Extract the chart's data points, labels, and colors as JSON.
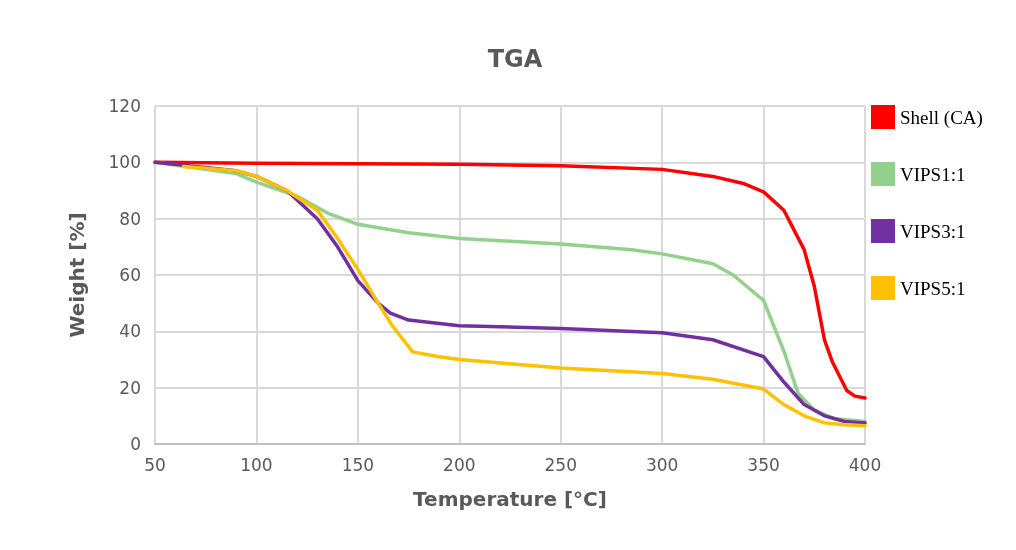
{
  "chart_data": {
    "type": "line",
    "title": "TGA",
    "xlabel": "Temperature [°C]",
    "ylabel": "Weight [%]",
    "xlim": [
      50,
      400
    ],
    "xticks": [
      50,
      100,
      150,
      200,
      250,
      300,
      350,
      400
    ],
    "ylim": [
      0,
      120
    ],
    "yticks": [
      0,
      20,
      40,
      60,
      80,
      100,
      120
    ],
    "grid": true,
    "legend": "right",
    "marker": "none",
    "line_style": "solid",
    "series": [
      {
        "name": "Shell (CA)",
        "color": "#ff0000",
        "x": [
          50,
          100,
          150,
          200,
          250,
          300,
          325,
          340,
          350,
          360,
          370,
          375,
          380,
          384,
          391,
          395,
          400
        ],
        "values": [
          100,
          99.7,
          99.5,
          99.3,
          98.8,
          97.5,
          95,
          92.5,
          89.5,
          83,
          69,
          56,
          37,
          29,
          19,
          17,
          16.3
        ]
      },
      {
        "name": "VIPS1:1",
        "color": "#92d08c",
        "x": [
          50,
          90,
          100,
          120,
          135,
          150,
          175,
          200,
          225,
          250,
          285,
          300,
          325,
          335,
          350,
          360,
          367,
          375,
          385,
          400
        ],
        "values": [
          100,
          96,
          93,
          88,
          82,
          78,
          75,
          73,
          72,
          71,
          69,
          67.5,
          64,
          60,
          51,
          33,
          18,
          12,
          9,
          8
        ]
      },
      {
        "name": "VIPS3:1",
        "color": "#7030a0",
        "x": [
          50,
          90,
          100,
          115,
          130,
          140,
          150,
          160,
          166,
          175,
          200,
          250,
          300,
          325,
          350,
          360,
          370,
          380,
          390,
          400
        ],
        "values": [
          100,
          97,
          95,
          90,
          80,
          70,
          58,
          50,
          46.5,
          44,
          42,
          41,
          39.5,
          37,
          31,
          22,
          14,
          10,
          8,
          7.5
        ]
      },
      {
        "name": "VIPS5:1",
        "color": "#ffc000",
        "x": [
          64,
          90,
          100,
          115,
          130,
          140,
          150,
          160,
          167,
          177,
          190,
          200,
          225,
          250,
          275,
          300,
          325,
          350,
          360,
          370,
          380,
          390,
          400
        ],
        "values": [
          98.5,
          97,
          95,
          90,
          83,
          73,
          62,
          50,
          42,
          32.7,
          31,
          30,
          28.5,
          27,
          26,
          25,
          23,
          19.5,
          14,
          10,
          7.5,
          6.8,
          6.5
        ]
      }
    ]
  }
}
